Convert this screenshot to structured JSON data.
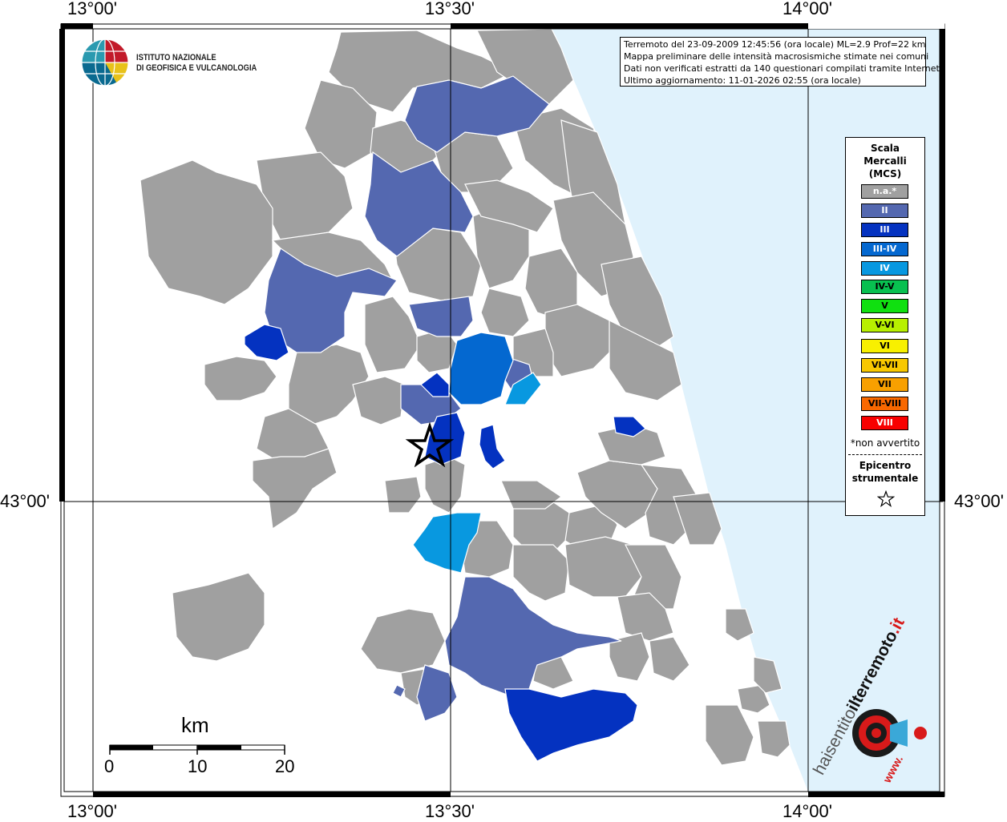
{
  "map": {
    "top_ticks": [
      "13°00'",
      "13°30'",
      "14°00'"
    ],
    "bottom_ticks": [
      "13°00'",
      "13°30'",
      "14°00'"
    ],
    "left_ticks": [
      "43°00'"
    ],
    "right_ticks": [
      "43°00'"
    ]
  },
  "logo": {
    "line1": "ISTITUTO NAZIONALE",
    "line2": "DI GEOFISICA E VULCANOLOGIA"
  },
  "info": {
    "line1": "Terremoto del 23-09-2009 12:45:56 (ora locale) ML=2.9 Prof=22 km",
    "line2": "Mappa preliminare delle intensità macrosismiche stimate nei comuni",
    "line3": "Dati non verificati estratti da 140 questionari compilati tramite Internet.",
    "line4": "Ultimo aggiornamento: 11-01-2026 02:55 (ora locale)"
  },
  "legend": {
    "title_line1": "Scala",
    "title_line2": "Mercalli",
    "title_line3": "(MCS)",
    "items": [
      {
        "label": "n.a.*",
        "color": "#a0a0a0"
      },
      {
        "label": "II",
        "color": "#5468b0"
      },
      {
        "label": "III",
        "color": "#0432c0"
      },
      {
        "label": "III-IV",
        "color": "#0468d0"
      },
      {
        "label": "IV",
        "color": "#0898e0"
      },
      {
        "label": "IV-V",
        "color": "#08c050"
      },
      {
        "label": "V",
        "color": "#10e010"
      },
      {
        "label": "V-VI",
        "color": "#b8f000"
      },
      {
        "label": "VI",
        "color": "#f8f000"
      },
      {
        "label": "VI-VII",
        "color": "#f8c800"
      },
      {
        "label": "VII",
        "color": "#f8a000"
      },
      {
        "label": "VII-VIII",
        "color": "#f86800"
      },
      {
        "label": "VIII",
        "color": "#f80000"
      }
    ],
    "note": "*non avvertito",
    "epicenter_line1": "Epicentro",
    "epicenter_line2": "strumentale"
  },
  "scale_bar": {
    "unit": "km",
    "labels": [
      "0",
      "10",
      "20"
    ]
  },
  "brand": {
    "text_a": "haisentito",
    "text_b": "ilterremoto",
    "text_c": ".it",
    "text_d": "www."
  },
  "colors": {
    "sea": "#e0f2fc",
    "na": "#a0a0a0",
    "ii": "#5468b0",
    "iii": "#0432c0",
    "iii_iv": "#0468d0",
    "iv": "#0898e0"
  }
}
